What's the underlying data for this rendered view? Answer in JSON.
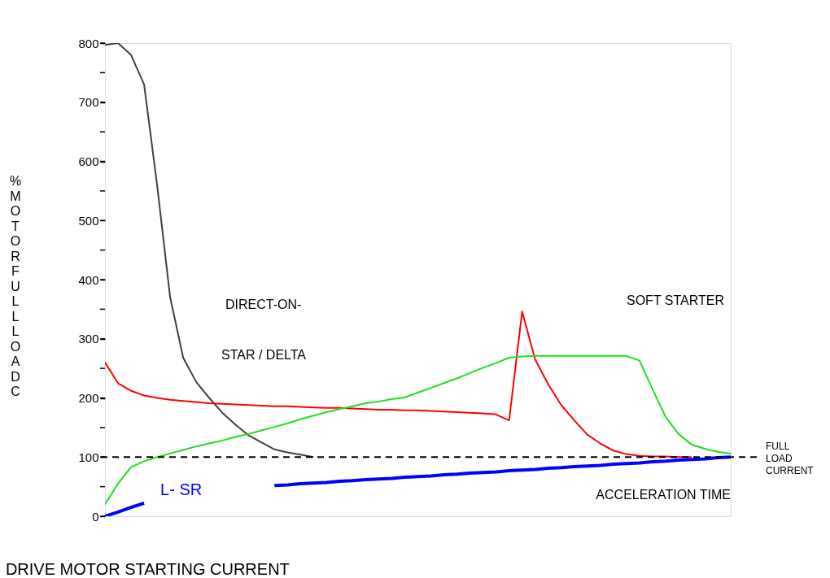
{
  "chart_data": {
    "type": "line",
    "title": "DRIVE MOTOR STARTING CURRENT",
    "xlabel": "ACCELERATION TIME",
    "ylabel": "% MOTOR FULL LOAD C",
    "categories": [
      null,
      null,
      null,
      null,
      null,
      null,
      null,
      null,
      null,
      null,
      null,
      null,
      null,
      null,
      null,
      null,
      null,
      null,
      null,
      null,
      null,
      null,
      null,
      null,
      null,
      null,
      null,
      null,
      null,
      null,
      null,
      null,
      null,
      null,
      null,
      null,
      null,
      null,
      null,
      null,
      null,
      null,
      null,
      null,
      null,
      null,
      null,
      null,
      null
    ],
    "ylim": [
      0,
      800
    ],
    "yticks": [
      0,
      {
        "value": 50,
        "label": null
      },
      100,
      {
        "value": 150,
        "label": null
      },
      200,
      {
        "value": 250,
        "label": null
      },
      300,
      {
        "value": 350,
        "label": null
      },
      400,
      {
        "value": 450,
        "label": null
      },
      500,
      {
        "value": 550,
        "label": null
      },
      600,
      {
        "value": 650,
        "label": null
      },
      700,
      {
        "value": 750,
        "label": null
      },
      800
    ],
    "tick_labels": "y",
    "grid": false,
    "marker": "none",
    "line_style": "solid",
    "series": [
      {
        "color": "#404040",
        "values": [
          797,
          800,
          780,
          730,
          560,
          370,
          268,
          227,
          200,
          175,
          155,
          137,
          125,
          113,
          108,
          104,
          100,
          null,
          null,
          null,
          null,
          null,
          null,
          null,
          null,
          null,
          null,
          null,
          null,
          null,
          null,
          null,
          null,
          null,
          null,
          null,
          null,
          null,
          null,
          null,
          null,
          null,
          null,
          null,
          null,
          null,
          null,
          null,
          null
        ]
      },
      {
        "color": "#ff0000",
        "values": [
          260,
          225,
          212,
          204,
          200,
          197,
          195,
          193,
          191,
          190,
          189,
          188,
          187,
          186,
          186,
          185,
          184,
          183,
          183,
          182,
          181,
          180,
          180,
          179,
          179,
          178,
          177,
          176,
          175,
          174,
          172,
          162,
          346,
          265,
          223,
          188,
          162,
          138,
          123,
          111,
          105,
          102,
          101,
          101,
          100,
          100,
          null,
          null,
          null
        ]
      },
      {
        "color": "#22dd22",
        "values": [
          20,
          55,
          83,
          93,
          100,
          106,
          112,
          118,
          123,
          128,
          134,
          139,
          145,
          151,
          157,
          164,
          170,
          176,
          181,
          186,
          191,
          194,
          198,
          201,
          209,
          217,
          225,
          233,
          242,
          251,
          259,
          268,
          270,
          271,
          271,
          271,
          271,
          271,
          271,
          271,
          271,
          263,
          215,
          168,
          139,
          121,
          114,
          109,
          106
        ]
      },
      {
        "name": "L- SR",
        "color": "#0000ff",
        "values": [
          0,
          7,
          15,
          22,
          null,
          null,
          null,
          null,
          null,
          null,
          null,
          null,
          null,
          52,
          53,
          55,
          56,
          57,
          59,
          60,
          62,
          63,
          64,
          66,
          67,
          68,
          70,
          71,
          73,
          74,
          75,
          77,
          78,
          79,
          81,
          82,
          84,
          85,
          86,
          88,
          89,
          90,
          92,
          93,
          95,
          96,
          97,
          99,
          100
        ]
      }
    ],
    "ref_lines": [
      {
        "axis": "y",
        "value": 100,
        "label": "FULL LOAD CURRENT",
        "color": "#000000",
        "line_style": "dashed"
      }
    ],
    "annotations": [
      "DIRECT-ON-",
      "STAR / DELTA",
      "SOFT STARTER"
    ]
  }
}
